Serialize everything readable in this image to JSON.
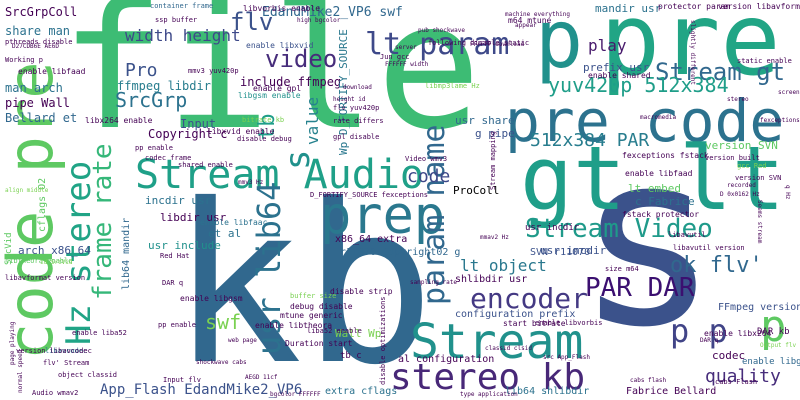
{
  "palette": {
    "dark_purple": "#440154",
    "indigo": "#3b528b",
    "steel_blue": "#31688e",
    "blue": "#2c728e",
    "teal": "#21908d",
    "teal_green": "#27ad81",
    "green": "#5ec962",
    "lime": "#addc30",
    "yellow": "#fde725"
  },
  "words": [
    {
      "id": "file",
      "text": "file",
      "color": "#3dbc74"
    },
    {
      "id": "kb",
      "text": "kb",
      "color": "#31688e"
    },
    {
      "id": "s",
      "text": "s",
      "color": "#3b528b"
    },
    {
      "id": "pre-top",
      "text": "pre",
      "color": "#21a585"
    },
    {
      "id": "p-top",
      "text": "p",
      "color": "#21918c"
    },
    {
      "id": "pre-code",
      "text": "pre code",
      "color": "#2c728e"
    },
    {
      "id": "gt-lt",
      "text": "gt lt",
      "color": "#1f9e89"
    },
    {
      "id": "code-pre",
      "text": "code pre",
      "color": "#5ec962"
    },
    {
      "id": "prep",
      "text": "prep",
      "color": "#2a788e"
    },
    {
      "id": "stream",
      "text": "Stream",
      "color": "#21918c"
    },
    {
      "id": "stream-audio",
      "text": "Stream Audio",
      "color": "#1fa088"
    },
    {
      "id": "stereo-kb",
      "text": "stereo kb",
      "color": "#482878"
    },
    {
      "id": "usr-lib64",
      "text": "usr lib64",
      "color": "#2c728e"
    },
    {
      "id": "hz-stereo",
      "text": "Hz stereo",
      "color": "#20a486"
    },
    {
      "id": "param-name",
      "text": "param name",
      "color": "#31688e"
    },
    {
      "id": "encoder",
      "text": "encoder",
      "color": "#443983"
    },
    {
      "id": "frame-rate",
      "text": "frame rate",
      "color": "#35b779"
    },
    {
      "id": "lt-param",
      "text": "lt param",
      "color": "#3e4989"
    },
    {
      "id": "stream-gt",
      "text": "Stream gt",
      "color": "#31688e"
    },
    {
      "id": "stream-video",
      "text": "Stream Video",
      "color": "#1f9a8a"
    },
    {
      "id": "par-dar",
      "text": "PAR DAR",
      "color": "#3b0f70"
    },
    {
      "id": "ok-flv",
      "text": "ok flv'",
      "color": "#31688e"
    },
    {
      "id": "p-p",
      "text": "p p",
      "color": "#414487"
    },
    {
      "id": "p-right",
      "text": "p",
      "color": "#5ec962"
    },
    {
      "id": "yuv-par",
      "text": "yuv420p 512x384",
      "color": "#1f9e89"
    },
    {
      "id": "par-512",
      "text": "512x384 PAR",
      "color": "#287d8e"
    },
    {
      "id": "video",
      "text": "video",
      "color": "#472d7b"
    },
    {
      "id": "flv",
      "text": "flv",
      "color": "#3b528b"
    },
    {
      "id": "width-height",
      "text": "width height",
      "color": "#3e4989"
    },
    {
      "id": "pro",
      "text": "Pro",
      "color": "#3b528b"
    },
    {
      "id": "srcgrp",
      "text": "SrcGrp",
      "color": "#2c728e"
    },
    {
      "id": "tb",
      "text": "tb",
      "color": "#1f9e89"
    },
    {
      "id": "s-small",
      "text": "s",
      "color": "#21918c"
    },
    {
      "id": "value",
      "text": "value",
      "color": "#26828e"
    },
    {
      "id": "swf",
      "text": "swf",
      "color": "#7ad151"
    },
    {
      "id": "play",
      "text": "play",
      "color": "#481a6c"
    },
    {
      "id": "code",
      "text": "code",
      "color": "#3e4989"
    },
    {
      "id": "quality",
      "text": "quality",
      "color": "#472d7b"
    },
    {
      "id": "lt-object",
      "text": "lt object",
      "color": "#2a788e"
    },
    {
      "id": "app-flash",
      "text": "App_Flash EdandMike2_VP6",
      "color": "#3b528b"
    },
    {
      "id": "edandmike-swf",
      "text": "EdandMike2_VP6 swf",
      "color": "#31688e"
    },
    {
      "id": "srcgrpcoll",
      "text": "SrcGrpColl",
      "color": "#440154"
    },
    {
      "id": "share-man",
      "text": "share man",
      "color": "#2c728e"
    },
    {
      "id": "man-arch",
      "text": "man arch",
      "color": "#2c728e"
    },
    {
      "id": "pipe-wall",
      "text": "pipe Wall",
      "color": "#440154"
    },
    {
      "id": "bellard-et",
      "text": "Bellard et",
      "color": "#31688e"
    },
    {
      "id": "copyright-c",
      "text": "Copyright c",
      "color": "#440154"
    },
    {
      "id": "ffmpeg-libdir",
      "text": "ffmpeg libdir",
      "color": "#287d8e"
    },
    {
      "id": "include-ffmpeg",
      "text": "include ffmpeg",
      "color": "#440154"
    },
    {
      "id": "input",
      "text": "Input",
      "color": "#3b528b"
    },
    {
      "id": "mandir-usr",
      "text": "mandir usr",
      "color": "#2c728e"
    },
    {
      "id": "wp-fortify",
      "text": "Wp D_FORTIFY_SOURCE",
      "color": "#2a788e"
    },
    {
      "id": "usr-share",
      "text": "usr share",
      "color": "#31688e"
    },
    {
      "id": "g-pipe",
      "text": "g pipe",
      "color": "#3b528b"
    },
    {
      "id": "prefix-usr",
      "text": "prefix usr",
      "color": "#3b528b"
    },
    {
      "id": "lt-embed",
      "text": "lt embed",
      "color": "#5ec962"
    },
    {
      "id": "c-fabrice",
      "text": "c Fabrice",
      "color": "#2c728e"
    },
    {
      "id": "usr-incdir",
      "text": "usr incdir",
      "color": "#3b528b"
    },
    {
      "id": "version-svn",
      "text": "version SVN",
      "color": "#5ec962"
    },
    {
      "id": "proColl",
      "text": "ProColl",
      "color": "#7ad151"
    },
    {
      "id": "arch-x86",
      "text": "arch x86_64",
      "color": "#3b528b"
    },
    {
      "id": "cflags-o2",
      "text": "cflags O2",
      "color": "#5ec962"
    },
    {
      "id": "lib64-mandir",
      "text": "lib64 mandir",
      "color": "#31688e"
    },
    {
      "id": "incdir-usr",
      "text": "incdir usr",
      "color": "#2c728e"
    },
    {
      "id": "libdir-usr",
      "text": "libdir usr",
      "color": "#440154"
    },
    {
      "id": "et-al",
      "text": "et al",
      "color": "#2c728e"
    },
    {
      "id": "usr-include",
      "text": "usr include",
      "color": "#21918c"
    },
    {
      "id": "x86-extra",
      "text": "x86_64 extra",
      "color": "#440154"
    },
    {
      "id": "r11070-copy",
      "text": "r11070 Copyright02 g",
      "color": "#31688e"
    },
    {
      "id": "svn-r11070",
      "text": "SVN r11070",
      "color": "#3b528b"
    },
    {
      "id": "shlibdir-usr",
      "text": "shlibdir usr",
      "color": "#440154"
    },
    {
      "id": "config-prefix",
      "text": "configuration prefix",
      "color": "#3b528b"
    },
    {
      "id": "wall-wp",
      "text": "Wall Wp",
      "color": "#7ad151"
    },
    {
      "id": "al-config",
      "text": "al configuration",
      "color": "#440154"
    },
    {
      "id": "extra-cflags",
      "text": "extra cflags",
      "color": "#2c728e"
    },
    {
      "id": "lib64-shlibdir",
      "text": "lib64 shlibdir",
      "color": "#2c728e"
    },
    {
      "id": "fabrice-bellard",
      "text": "Fabrice Bellard",
      "color": "#440154"
    },
    {
      "id": "codec",
      "text": "codec",
      "color": "#440154"
    },
    {
      "id": "ffmpeg-version",
      "text": "FFmpeg version",
      "color": "#3b528b"
    },
    {
      "id": "enable-libgsm",
      "text": "enable libgsm",
      "color": "#31688e"
    },
    {
      "id": "dar-kb",
      "text": "DAR kb",
      "color": "#440154"
    },
    {
      "id": "tb-c",
      "text": "tb c",
      "color": "#440154"
    },
    {
      "id": "usr-incdir2",
      "text": "usr incdir",
      "color": "#440154"
    },
    {
      "id": "enable-libfaac",
      "text": "enable libfaac",
      "color": "#2c728e"
    },
    {
      "id": "libvorbis-enable",
      "text": "libvorbis enable",
      "color": "#440154"
    },
    {
      "id": "enable-libxvid",
      "text": "enable libxvid",
      "color": "#3b528b"
    },
    {
      "id": "enable-gpl",
      "text": "enable gpl",
      "color": "#440154"
    },
    {
      "id": "enable-libfaad",
      "text": "enable libfaad",
      "color": "#440154"
    },
    {
      "id": "enable-shared",
      "text": "enable shared",
      "color": "#440154"
    },
    {
      "id": "libgsm-enable",
      "text": "libgsm enable",
      "color": "#21918c"
    },
    {
      "id": "libx264-enable",
      "text": "libx264 enable",
      "color": "#440154"
    },
    {
      "id": "enable-libtheora",
      "text": "enable libtheora",
      "color": "#440154"
    },
    {
      "id": "disable-strip",
      "text": "disable strip",
      "color": "#440154"
    },
    {
      "id": "debug-disable",
      "text": "debug disable",
      "color": "#440154"
    },
    {
      "id": "start-bitrate",
      "text": "start bitrate",
      "color": "#440154"
    },
    {
      "id": "duration-start",
      "text": "Duration start",
      "color": "#440154"
    },
    {
      "id": "mtune-generic",
      "text": "mtune generic",
      "color": "#440154"
    },
    {
      "id": "libxvid-enable",
      "text": "libxvid enable",
      "color": "#440154"
    },
    {
      "id": "m64-mtune",
      "text": "m64 mtune",
      "color": "#440154"
    },
    {
      "id": "protector-param",
      "text": "protector param",
      "color": "#440154"
    },
    {
      "id": "version-libavformat",
      "text": "version libavformat",
      "color": "#440154"
    },
    {
      "id": "enable-libfaad2",
      "text": "enable libfaad",
      "color": "#440154"
    },
    {
      "id": "fexceptions-fstack",
      "text": "fexceptions fstack",
      "color": "#440154"
    },
    {
      "id": "fstack-protector",
      "text": "fstack protector",
      "color": "#440154"
    },
    {
      "id": "enable-libx264",
      "text": "enable libx264",
      "color": "#440154"
    },
    {
      "id": "enable-libgsm2",
      "text": "enable libgsm",
      "color": "#440154"
    },
    {
      "id": "container-frame",
      "text": "container frame",
      "color": "#31688e"
    },
    {
      "id": "ssp-buffer",
      "text": "ssp buffer",
      "color": "#440154"
    },
    {
      "id": "pthreads-disable",
      "text": "pthreads disable",
      "color": "#440154"
    },
    {
      "id": "codec-frame",
      "text": "codec frame",
      "color": "#440154"
    },
    {
      "id": "shared-enable",
      "text": "shared enable",
      "color": "#440154"
    },
    {
      "id": "libavutil-version",
      "text": "libavutil version",
      "color": "#440154"
    },
    {
      "id": "flash-cabs",
      "text": "cabs Flash",
      "color": "#440154"
    },
    {
      "id": "red-hat",
      "text": "Red Hat",
      "color": "#440154"
    },
    {
      "id": "dar-q",
      "text": "DAR q",
      "color": "#440154"
    },
    {
      "id": "buffer-size",
      "text": "buffer size",
      "color": "#7ad151"
    },
    {
      "id": "lib64-libavcodec",
      "text": "libavcodec",
      "color": "#2c728e"
    },
    {
      "id": "stream-mapping",
      "text": "Stream mapping",
      "color": "#440154"
    },
    {
      "id": "following-disable",
      "text": "following disable static",
      "color": "#440154"
    },
    {
      "id": "static-enable",
      "text": "static enable",
      "color": "#440154"
    },
    {
      "id": "libmp3lame-hz",
      "text": "libmp3lame Hz",
      "color": "#7ad151"
    },
    {
      "id": "flv-yuv",
      "text": "flv yuv420p",
      "color": "#440154"
    },
    {
      "id": "gpl-disable",
      "text": "gpl disable",
      "color": "#440154"
    },
    {
      "id": "rate-differs",
      "text": "rate differs",
      "color": "#440154"
    },
    {
      "id": "bitrate-kb",
      "text": "bitrate kb",
      "color": "#7ad151"
    },
    {
      "id": "disable-debug",
      "text": "disable debug",
      "color": "#440154"
    },
    {
      "id": "pp-enable",
      "text": "pp enable",
      "color": "#440154"
    },
    {
      "id": "video-wmv3",
      "text": "Video wmv3",
      "color": "#440154"
    },
    {
      "id": "d-fortify-exc",
      "text": "D_FORTIFY_SOURCE fexceptions",
      "color": "#440154"
    },
    {
      "id": "libavutil",
      "text": "libavutil",
      "color": "#440154"
    },
    {
      "id": "size-m64",
      "text": "size m64",
      "color": "#440154"
    },
    {
      "id": "disable-opt",
      "text": "disable optimizations",
      "color": "#440154"
    },
    {
      "id": "enable-libvorbis",
      "text": "enable libvorbis",
      "color": "#440154"
    },
    {
      "id": "libtheora-enable",
      "text": "libtheora enable",
      "color": "#5ec962"
    },
    {
      "id": "srcvid",
      "text": "SrcVid",
      "color": "#5ec962"
    },
    {
      "id": "libavformat-version",
      "text": "libavformat version",
      "color": "#440154"
    },
    {
      "id": "flv-stream",
      "text": "flv' Stream",
      "color": "#440154"
    },
    {
      "id": "audio-wmav2",
      "text": "Audio wmav2",
      "color": "#440154"
    },
    {
      "id": "object-classid",
      "text": "object classid",
      "color": "#440154"
    },
    {
      "id": "input-flv",
      "text": "Input flv",
      "color": "#440154"
    },
    {
      "id": "version-libavcodec",
      "text": "version libavcodec",
      "color": "#440154"
    },
    {
      "id": "enable-liba52",
      "text": "enable liba52",
      "color": "#440154"
    },
    {
      "id": "liba52-enable",
      "text": "liba52 enable",
      "color": "#440154"
    },
    {
      "id": "working-p",
      "text": "Working p",
      "color": "#440154"
    },
    {
      "id": "d2-cdb6e",
      "text": "D27CDB6E AE6D",
      "color": "#440154"
    },
    {
      "id": "libvorbis-pp",
      "text": "pp enable",
      "color": "#440154"
    },
    {
      "id": "libavcodec-version",
      "text": "version built",
      "color": "#440154"
    },
    {
      "id": "version-svn-small",
      "text": "version SVN",
      "color": "#440154"
    },
    {
      "id": "gcc-red",
      "text": "gcc Red",
      "color": "#7ad151"
    },
    {
      "id": "machine-everything",
      "text": "machine everything",
      "color": "#440154"
    },
    {
      "id": "jun-gcc",
      "text": "Jun gcc",
      "color": "#440154"
    },
    {
      "id": "server",
      "text": "server",
      "color": "#440154"
    },
    {
      "id": "high-bgcolor",
      "text": "high bgcolor",
      "color": "#440154"
    },
    {
      "id": "mmv3-yuv",
      "text": "mmv3 yuv420p",
      "color": "#440154"
    },
    {
      "id": "recorded",
      "text": "recorded",
      "color": "#440154"
    },
    {
      "id": "d-0x0162",
      "text": "D 0x0162 Hz",
      "color": "#440154"
    },
    {
      "id": "seems-stream",
      "text": "Seems stream",
      "color": "#440154"
    },
    {
      "id": "macromedia",
      "text": "macromedia",
      "color": "#440154"
    },
    {
      "id": "mmav2-hz",
      "text": "mmav2 Hz",
      "color": "#440154"
    },
    {
      "id": "sampling-rate",
      "text": "sampling rate",
      "color": "#440154"
    },
    {
      "id": "output-flv",
      "text": "Output flv",
      "color": "#7ad151"
    },
    {
      "id": "type-application",
      "text": "type application",
      "color": "#440154"
    },
    {
      "id": "src-app-flash",
      "text": "src App_Flash",
      "color": "#440154"
    },
    {
      "id": "bgcolor-ffffff",
      "text": "bgcolor FFFFFF",
      "color": "#440154"
    },
    {
      "id": "download",
      "text": "download",
      "color": "#440154"
    },
    {
      "id": "height-id",
      "text": "height id",
      "color": "#440154"
    },
    {
      "id": "pub-shockwave",
      "text": "pub shockwave",
      "color": "#440154"
    },
    {
      "id": "ffffff-width",
      "text": "FFFFFF width",
      "color": "#440154"
    },
    {
      "id": "dar-q2",
      "text": "DAR q",
      "color": "#440154"
    },
    {
      "id": "mmv3-hz",
      "text": "mmv3 Hz",
      "color": "#440154"
    },
    {
      "id": "id-srcvid",
      "text": "id SrcVid",
      "color": "#7ad151"
    },
    {
      "id": "page-playing",
      "text": "page playing",
      "color": "#440154"
    },
    {
      "id": "normal-speed",
      "text": "normal speed",
      "color": "#440154"
    },
    {
      "id": "screen",
      "text": "screen",
      "color": "#440154"
    },
    {
      "id": "fexceptions",
      "text": "fexceptions",
      "color": "#440154"
    },
    {
      "id": "cabs-flash2",
      "text": "cabs flash",
      "color": "#440154"
    },
    {
      "id": "stereo-small",
      "text": "stereo",
      "color": "#440154"
    },
    {
      "id": "appear",
      "text": "appear",
      "color": "#440154"
    },
    {
      "id": "q-hz",
      "text": "q Hz",
      "color": "#440154"
    },
    {
      "id": "slightly-different",
      "text": "slightly different",
      "color": "#440154"
    },
    {
      "id": "shockwave-cabs",
      "text": "shockwave cabs",
      "color": "#440154"
    },
    {
      "id": "align-middle",
      "text": "align middle",
      "color": "#7ad151"
    },
    {
      "id": "classid-clsid",
      "text": "classid clsid",
      "color": "#440154"
    },
    {
      "id": "aegd-11cf",
      "text": "AEGD 11cf",
      "color": "#440154"
    },
    {
      "id": "web-page",
      "text": "web page",
      "color": "#440154"
    },
    {
      "id": "ffffff-download",
      "text": "FFFFFF download",
      "color": "#440154"
    }
  ]
}
